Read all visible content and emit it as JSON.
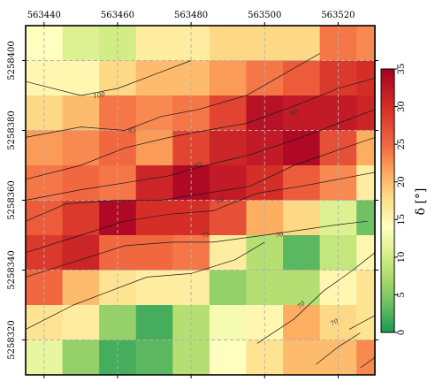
{
  "chart_data": {
    "type": "heatmap",
    "title": "",
    "x": {
      "ticks": [
        563440,
        563460,
        563480,
        563500,
        563520
      ],
      "tick_labels": [
        "563440",
        "563460",
        "563480",
        "563500",
        "563520"
      ],
      "range": [
        563435,
        563530
      ]
    },
    "y": {
      "ticks": [
        5258320,
        5258340,
        5258360,
        5258380,
        5258400
      ],
      "tick_labels": [
        "5258320",
        "5258340",
        "5258360",
        "5258380",
        "5258400"
      ],
      "range": [
        5258310,
        5258410
      ]
    },
    "grid": true,
    "cells": {
      "x_edges": [
        563435,
        563445,
        563455,
        563465,
        563475,
        563485,
        563495,
        563505,
        563515,
        563525,
        563530
      ],
      "y_edges": [
        5258410,
        5258400,
        5258390,
        5258380,
        5258370,
        5258360,
        5258350,
        5258340,
        5258330,
        5258320,
        5258310
      ],
      "values": [
        [
          14,
          11,
          10,
          16,
          16,
          18,
          18,
          18,
          24,
          23
        ],
        [
          15,
          15,
          18,
          20,
          20,
          22,
          24,
          26,
          29,
          30
        ],
        [
          18,
          20,
          24,
          23,
          24,
          28,
          33,
          32,
          32,
          31
        ],
        [
          22,
          23,
          25,
          22,
          28,
          31,
          32,
          34,
          27,
          21
        ],
        [
          24,
          25,
          24,
          31,
          34,
          32,
          30,
          26,
          23,
          16
        ],
        [
          26,
          29,
          34,
          30,
          30,
          27,
          21,
          18,
          11,
          4
        ],
        [
          29,
          31,
          25,
          25,
          24,
          16,
          8,
          3,
          9,
          15
        ],
        [
          25,
          20,
          17,
          16,
          16,
          6,
          8,
          8,
          15,
          17
        ],
        [
          17,
          16,
          6,
          2,
          8,
          13,
          15,
          21,
          18,
          17
        ],
        [
          12,
          6,
          2,
          3,
          8,
          14,
          17,
          20,
          20,
          23
        ]
      ]
    },
    "colorbar": {
      "label": "δ [°]",
      "ticks": [
        0,
        5,
        10,
        15,
        20,
        25,
        30,
        35
      ],
      "tick_labels": [
        "0",
        "5",
        "10",
        "15",
        "20",
        "25",
        "30",
        "35"
      ],
      "range": [
        0,
        35
      ],
      "colormap": "RdYlGn_r"
    },
    "contour_labels": [
      {
        "text": "100",
        "x": 563455,
        "y": 5258390,
        "angle": -10
      },
      {
        "text": "95",
        "x": 563464,
        "y": 5258380,
        "angle": -10
      },
      {
        "text": "90",
        "x": 563508,
        "y": 5258385,
        "angle": -25
      },
      {
        "text": "85",
        "x": 563482,
        "y": 5258370,
        "angle": -20
      },
      {
        "text": "80",
        "x": 563488,
        "y": 5258360,
        "angle": -20
      },
      {
        "text": "75",
        "x": 563484,
        "y": 5258350,
        "angle": -20
      },
      {
        "text": "70",
        "x": 563504,
        "y": 5258350,
        "angle": -10
      },
      {
        "text": "70",
        "x": 563510,
        "y": 5258330,
        "angle": -45
      },
      {
        "text": "70",
        "x": 563519,
        "y": 5258325,
        "angle": -30
      }
    ],
    "contours": [
      [
        [
          563435,
          5258394
        ],
        [
          563450,
          5258390
        ],
        [
          563460,
          5258392
        ],
        [
          563470,
          5258396
        ],
        [
          563480,
          5258400
        ]
      ],
      [
        [
          563435,
          5258378
        ],
        [
          563450,
          5258381
        ],
        [
          563462,
          5258380
        ],
        [
          563472,
          5258384
        ],
        [
          563482,
          5258386
        ],
        [
          563495,
          5258390
        ],
        [
          563505,
          5258396
        ],
        [
          563515,
          5258402
        ]
      ],
      [
        [
          563435,
          5258366
        ],
        [
          563450,
          5258370
        ],
        [
          563462,
          5258375
        ],
        [
          563474,
          5258378
        ],
        [
          563484,
          5258380
        ],
        [
          563495,
          5258382
        ],
        [
          563508,
          5258387
        ],
        [
          563520,
          5258392
        ],
        [
          563530,
          5258395
        ]
      ],
      [
        [
          563435,
          5258360
        ],
        [
          563450,
          5258363
        ],
        [
          563462,
          5258365
        ],
        [
          563474,
          5258367
        ],
        [
          563484,
          5258370
        ],
        [
          563496,
          5258373
        ],
        [
          563510,
          5258378
        ],
        [
          563530,
          5258386
        ]
      ],
      [
        [
          563435,
          5258354
        ],
        [
          563446,
          5258359
        ],
        [
          563460,
          5258360
        ],
        [
          563472,
          5258360
        ],
        [
          563484,
          5258362
        ],
        [
          563496,
          5258364
        ],
        [
          563508,
          5258370
        ],
        [
          563530,
          5258378
        ]
      ],
      [
        [
          563435,
          5258345
        ],
        [
          563450,
          5258350
        ],
        [
          563462,
          5258354
        ],
        [
          563474,
          5258356
        ],
        [
          563486,
          5258357
        ],
        [
          563498,
          5258362
        ],
        [
          563510,
          5258364
        ],
        [
          563530,
          5258368
        ]
      ],
      [
        [
          563435,
          5258338
        ],
        [
          563450,
          5258343
        ],
        [
          563462,
          5258347
        ],
        [
          563475,
          5258348
        ],
        [
          563486,
          5258348
        ],
        [
          563500,
          5258350
        ],
        [
          563520,
          5258353
        ],
        [
          563528,
          5258354
        ]
      ],
      [
        [
          563435,
          5258323
        ],
        [
          563448,
          5258330
        ],
        [
          563458,
          5258334
        ],
        [
          563468,
          5258338
        ],
        [
          563480,
          5258339
        ],
        [
          563492,
          5258343
        ],
        [
          563500,
          5258348
        ]
      ],
      [
        [
          563498,
          5258319
        ],
        [
          563508,
          5258326
        ],
        [
          563516,
          5258334
        ],
        [
          563524,
          5258340
        ],
        [
          563530,
          5258345
        ]
      ],
      [
        [
          563514,
          5258313
        ],
        [
          563520,
          5258318
        ],
        [
          563526,
          5258322
        ]
      ],
      [
        [
          563526,
          5258312
        ],
        [
          563530,
          5258315
        ]
      ],
      [
        [
          563523,
          5258323
        ],
        [
          563530,
          5258327
        ]
      ]
    ]
  }
}
